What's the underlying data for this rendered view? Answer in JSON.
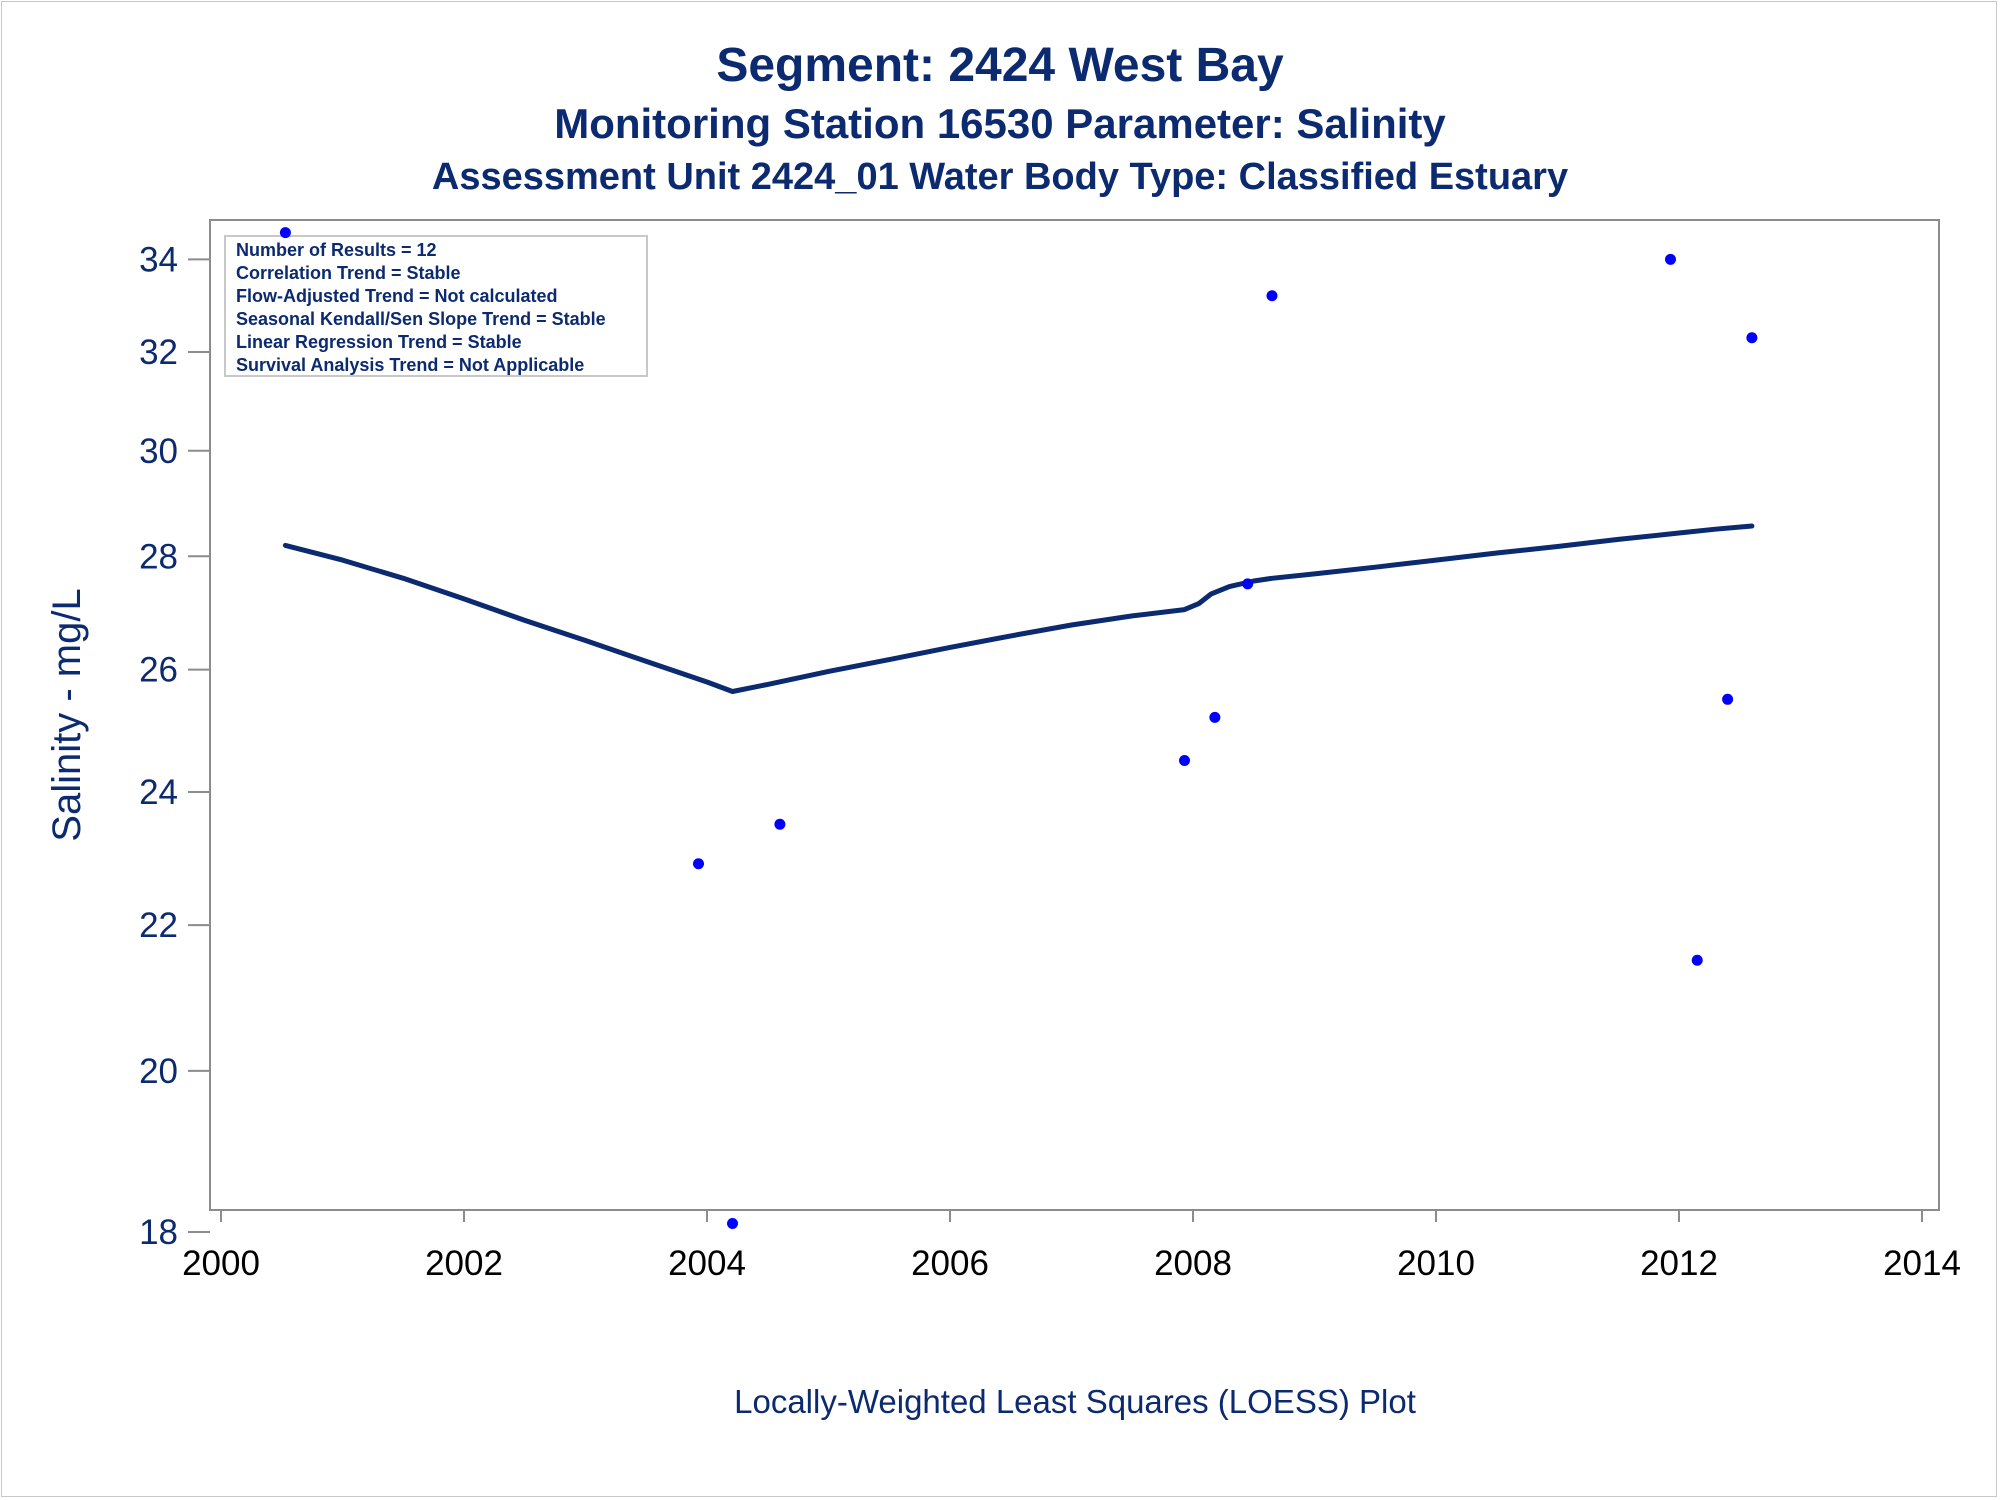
{
  "chart_data": {
    "type": "scatter",
    "title": "Segment: 2424  West Bay",
    "subtitle1": "Monitoring Station 16530 Parameter: Salinity",
    "subtitle2": "Assessment Unit 2424_01   Water Body Type: Classified Estuary",
    "xlabel": "Locally-Weighted Least Squares (LOESS) Plot",
    "ylabel": "Salinity - mg/L",
    "y_scale": "log",
    "xlim": [
      2000,
      2014
    ],
    "ylim": [
      18,
      35
    ],
    "x_ticks": [
      "2000",
      "2002",
      "2004",
      "2006",
      "2008",
      "2010",
      "2012",
      "2014"
    ],
    "y_ticks": [
      "18",
      "20",
      "22",
      "24",
      "26",
      "28",
      "30",
      "32",
      "34"
    ],
    "grid": false,
    "legend": "none",
    "stats_box": [
      "Number of Results = 12",
      "Correlation Trend = Stable",
      "Flow-Adjusted Trend = Not calculated",
      "Seasonal Kendall/Sen Slope Trend = Stable",
      "Linear Regression Trend = Stable",
      "Survival Analysis Trend = Not Applicable"
    ],
    "series": [
      {
        "type": "scatter",
        "color": "#0000ff",
        "x": [
          2000.53,
          2003.93,
          2004.21,
          2004.6,
          2007.93,
          2008.18,
          2008.45,
          2008.65,
          2011.93,
          2012.15,
          2012.4,
          2012.6
        ],
        "y": [
          34.6,
          22.9,
          18.1,
          23.5,
          24.5,
          25.2,
          27.5,
          33.2,
          34.0,
          21.5,
          25.5,
          32.3
        ]
      },
      {
        "type": "line",
        "color": "#0b2a6f",
        "x": [
          2000.53,
          2001.0,
          2001.5,
          2002.0,
          2002.5,
          2003.0,
          2003.5,
          2004.0,
          2004.21,
          2004.5,
          2005.0,
          2005.5,
          2006.0,
          2006.5,
          2007.0,
          2007.5,
          2007.93,
          2008.05,
          2008.15,
          2008.3,
          2008.5,
          2008.65,
          2009.0,
          2009.5,
          2010.0,
          2010.5,
          2011.0,
          2011.5,
          2012.0,
          2012.3,
          2012.6
        ],
        "y": [
          28.2,
          27.93,
          27.6,
          27.23,
          26.85,
          26.5,
          26.14,
          25.79,
          25.63,
          25.75,
          25.97,
          26.17,
          26.38,
          26.58,
          26.77,
          26.93,
          27.04,
          27.15,
          27.32,
          27.45,
          27.55,
          27.6,
          27.68,
          27.8,
          27.93,
          28.06,
          28.18,
          28.31,
          28.43,
          28.5,
          28.56
        ]
      }
    ]
  }
}
